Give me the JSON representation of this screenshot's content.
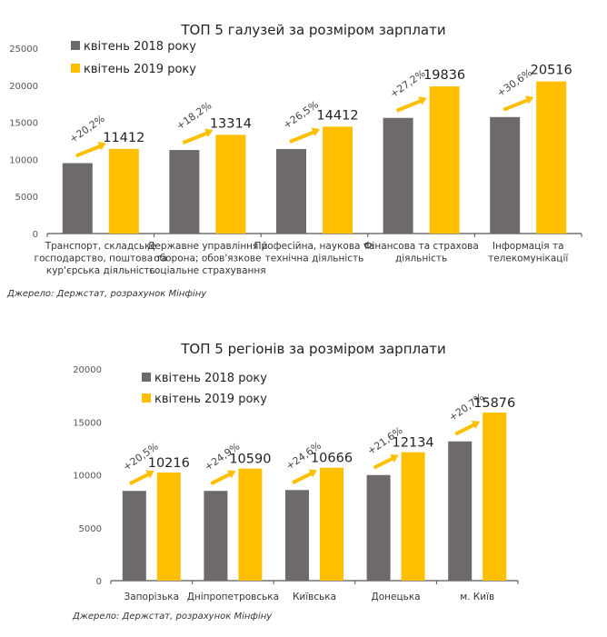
{
  "colors": {
    "series_2018": "#6d6a69",
    "series_2019": "#fdbf00",
    "arrow": "#fdbf00",
    "axis": "#555555"
  },
  "chart_data": [
    {
      "type": "bar",
      "title": "ТОП 5 галузей за розміром зарплати",
      "categories": [
        [
          "Транспорт, складське",
          "господарство, поштова та",
          "кур'єрська діяльність"
        ],
        [
          "Державне управління й",
          "оборона; обов'язкове",
          "соціальне страхування"
        ],
        [
          "Професійна, наукова та",
          "технічна діяльність"
        ],
        [
          "Фінансова та страхова",
          "діяльність"
        ],
        [
          "Інформація та",
          "телекомунікації"
        ]
      ],
      "series": [
        {
          "name": "квітень 2018 року",
          "values": [
            9494,
            11264,
            11393,
            15594,
            15709
          ]
        },
        {
          "name": "квітень 2019 року",
          "values": [
            11412,
            13314,
            14412,
            19836,
            20516
          ]
        }
      ],
      "data_labels": [
        "11412",
        "13314",
        "14412",
        "19836",
        "20516"
      ],
      "growth_labels": [
        "+20,2%",
        "+18,2%",
        "+26,5%",
        "+27,2%",
        "+30,6%"
      ],
      "yticks": [
        "0",
        "5000",
        "10000",
        "15000",
        "20000",
        "25000"
      ],
      "ylim": [
        0,
        25000
      ],
      "xlabel": "",
      "ylabel": "",
      "legend": "top-left",
      "grid": false,
      "source": "Джерело: Держстат, розрахунок Мінфіну"
    },
    {
      "type": "bar",
      "title": "ТОП 5 регіонів за розміром зарплати",
      "categories": [
        [
          "Запорізька"
        ],
        [
          "Дніпропетровська"
        ],
        [
          "Київська"
        ],
        [
          "Донецька"
        ],
        [
          "м. Київ"
        ]
      ],
      "series": [
        {
          "name": "квітень 2018 року",
          "values": [
            8478,
            8479,
            8560,
            9979,
            13153
          ]
        },
        {
          "name": "квітень 2019 року",
          "values": [
            10216,
            10590,
            10666,
            12134,
            15876
          ]
        }
      ],
      "data_labels": [
        "10216",
        "10590",
        "10666",
        "12134",
        "15876"
      ],
      "growth_labels": [
        "+20,5%",
        "+24,9%",
        "+24,6%",
        "+21,6%",
        "+20,7%"
      ],
      "yticks": [
        "0",
        "5000",
        "10000",
        "15000",
        "20000"
      ],
      "ylim": [
        0,
        20000
      ],
      "xlabel": "",
      "ylabel": "",
      "legend": "top-left",
      "grid": false,
      "source": "Джерело: Держстат, розрахунок Мінфіну"
    }
  ]
}
